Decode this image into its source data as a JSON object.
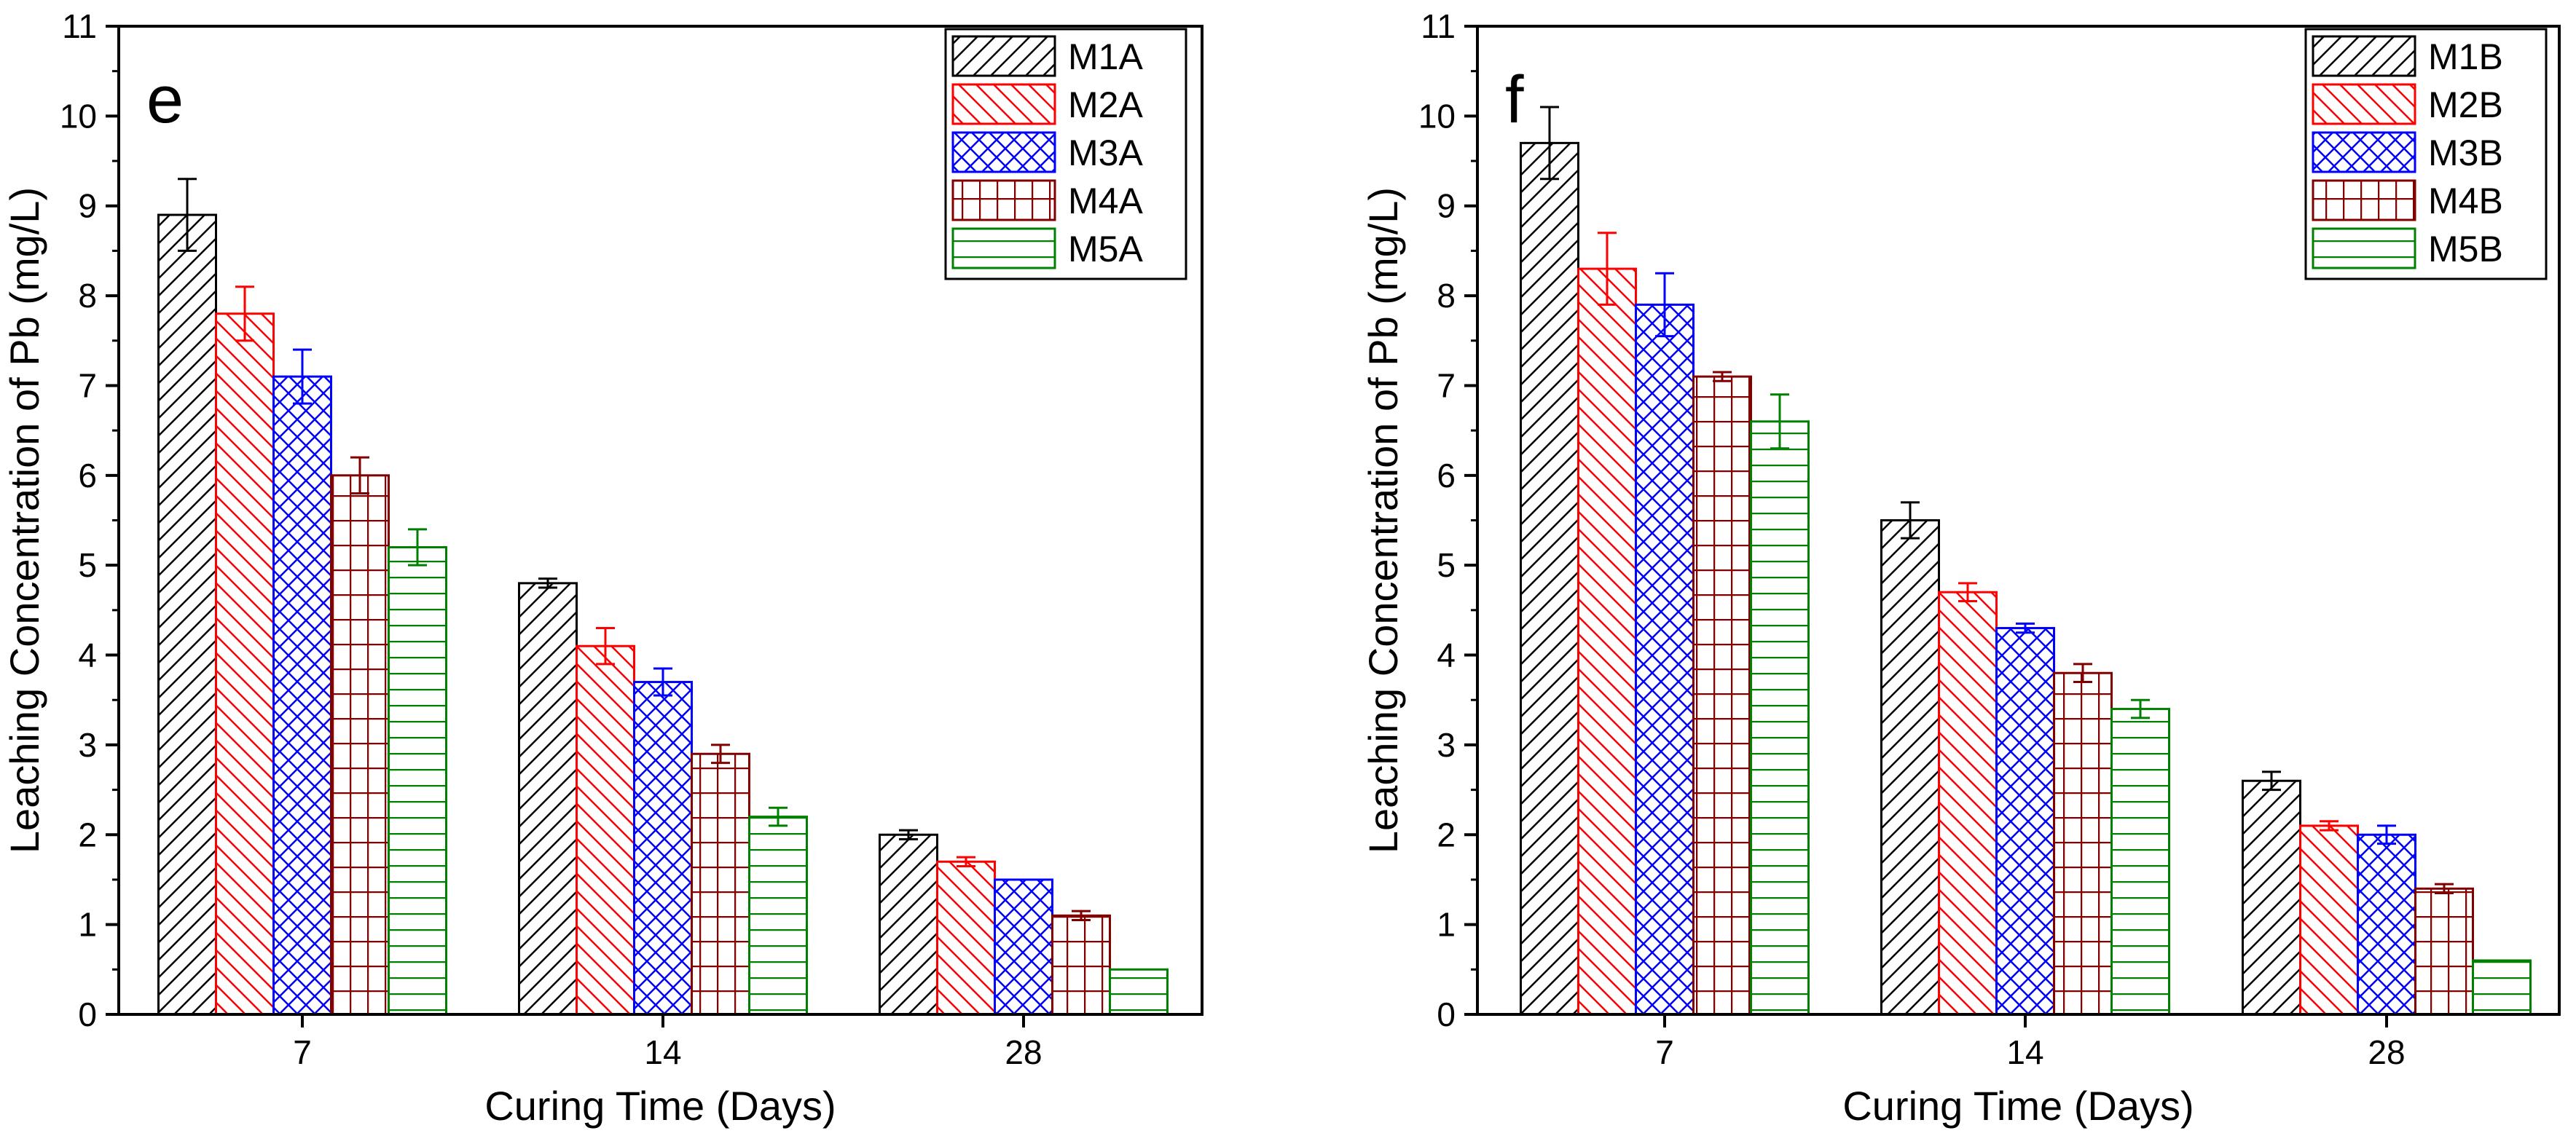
{
  "figure": {
    "colors": {
      "M1": "#000000",
      "M2": "#ff0000",
      "M3": "#0000ff",
      "M4": "#800000",
      "M5": "#008000"
    },
    "patterns": [
      "diag-right",
      "diag-left",
      "crosshatch",
      "grid",
      "horizontal"
    ]
  },
  "chart_data": [
    {
      "type": "bar",
      "panel_label": "e",
      "xlabel": "Curing Time (Days)",
      "ylabel": "Leaching Concentration of Pb (mg/L)",
      "categories": [
        "7",
        "14",
        "28"
      ],
      "ylim": [
        0,
        11
      ],
      "yticks": [
        "0",
        "1",
        "2",
        "3",
        "4",
        "5",
        "6",
        "7",
        "8",
        "9",
        "10",
        "11"
      ],
      "legend_position": "top-right",
      "series": [
        {
          "name": "M1A",
          "values": [
            8.9,
            4.8,
            2.0
          ],
          "errors": [
            0.4,
            0.05,
            0.05
          ]
        },
        {
          "name": "M2A",
          "values": [
            7.8,
            4.1,
            1.7
          ],
          "errors": [
            0.3,
            0.2,
            0.05
          ]
        },
        {
          "name": "M3A",
          "values": [
            7.1,
            3.7,
            1.5
          ],
          "errors": [
            0.3,
            0.15,
            0.0
          ]
        },
        {
          "name": "M4A",
          "values": [
            6.0,
            2.9,
            1.1
          ],
          "errors": [
            0.2,
            0.1,
            0.05
          ]
        },
        {
          "name": "M5A",
          "values": [
            5.2,
            2.2,
            0.5
          ],
          "errors": [
            0.2,
            0.1,
            0.0
          ]
        }
      ]
    },
    {
      "type": "bar",
      "panel_label": "f",
      "xlabel": "Curing Time (Days)",
      "ylabel": "Leaching Concentration of Pb (mg/L)",
      "categories": [
        "7",
        "14",
        "28"
      ],
      "ylim": [
        0,
        11
      ],
      "yticks": [
        "0",
        "1",
        "2",
        "3",
        "4",
        "5",
        "6",
        "7",
        "8",
        "9",
        "10",
        "11"
      ],
      "legend_position": "top-right",
      "series": [
        {
          "name": "M1B",
          "values": [
            9.7,
            5.5,
            2.6
          ],
          "errors": [
            0.4,
            0.2,
            0.1
          ]
        },
        {
          "name": "M2B",
          "values": [
            8.3,
            4.7,
            2.1
          ],
          "errors": [
            0.4,
            0.1,
            0.05
          ]
        },
        {
          "name": "M3B",
          "values": [
            7.9,
            4.3,
            2.0
          ],
          "errors": [
            0.35,
            0.05,
            0.1
          ]
        },
        {
          "name": "M4B",
          "values": [
            7.1,
            3.8,
            1.4
          ],
          "errors": [
            0.05,
            0.1,
            0.05
          ]
        },
        {
          "name": "M5B",
          "values": [
            6.6,
            3.4,
            0.6
          ],
          "errors": [
            0.3,
            0.1,
            0.0
          ]
        }
      ]
    }
  ]
}
